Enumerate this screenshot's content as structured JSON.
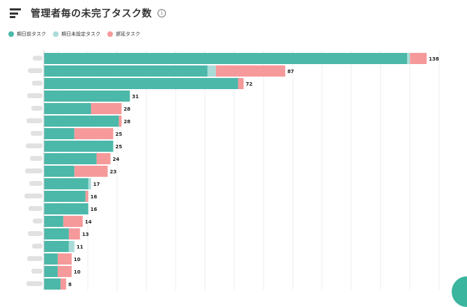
{
  "header": {
    "title": "管理者毎の未完了タスク数",
    "info_symbol": "i"
  },
  "colors": {
    "before_due": "#4cb8a9",
    "unset_due": "#a9dcd8",
    "overdue": "#f6999a",
    "grid": "#ececec",
    "label_blur": "#d4d4d4",
    "badge": "#3bb59e"
  },
  "chart_data": {
    "type": "bar",
    "orientation": "horizontal",
    "stacked": true,
    "title": "管理者毎の未完了タスク数",
    "legend": [
      "期日前タスク",
      "期日未設定タスク",
      "遅延タスク"
    ],
    "legend_position": "top-left",
    "categories_visible": false,
    "xlim": [
      0,
      145
    ],
    "grid": true,
    "series": [
      {
        "name": "期日前タスク",
        "values": [
          131,
          59,
          70,
          31,
          17,
          27,
          11,
          25,
          19,
          11,
          16,
          15,
          16,
          7,
          9,
          9,
          5,
          5,
          6
        ]
      },
      {
        "name": "期日未設定タスク",
        "values": [
          1,
          3,
          0,
          0,
          0,
          0,
          0,
          0,
          0,
          0,
          1,
          0,
          0,
          0,
          0,
          2,
          0,
          0,
          0
        ]
      },
      {
        "name": "遅延タスク",
        "values": [
          6,
          25,
          2,
          0,
          11,
          1,
          14,
          0,
          5,
          12,
          0,
          1,
          0,
          7,
          4,
          0,
          5,
          5,
          2
        ]
      }
    ],
    "totals": [
      138,
      87,
      72,
      31,
      28,
      28,
      25,
      25,
      24,
      23,
      17,
      16,
      16,
      14,
      13,
      11,
      10,
      10,
      8
    ]
  }
}
